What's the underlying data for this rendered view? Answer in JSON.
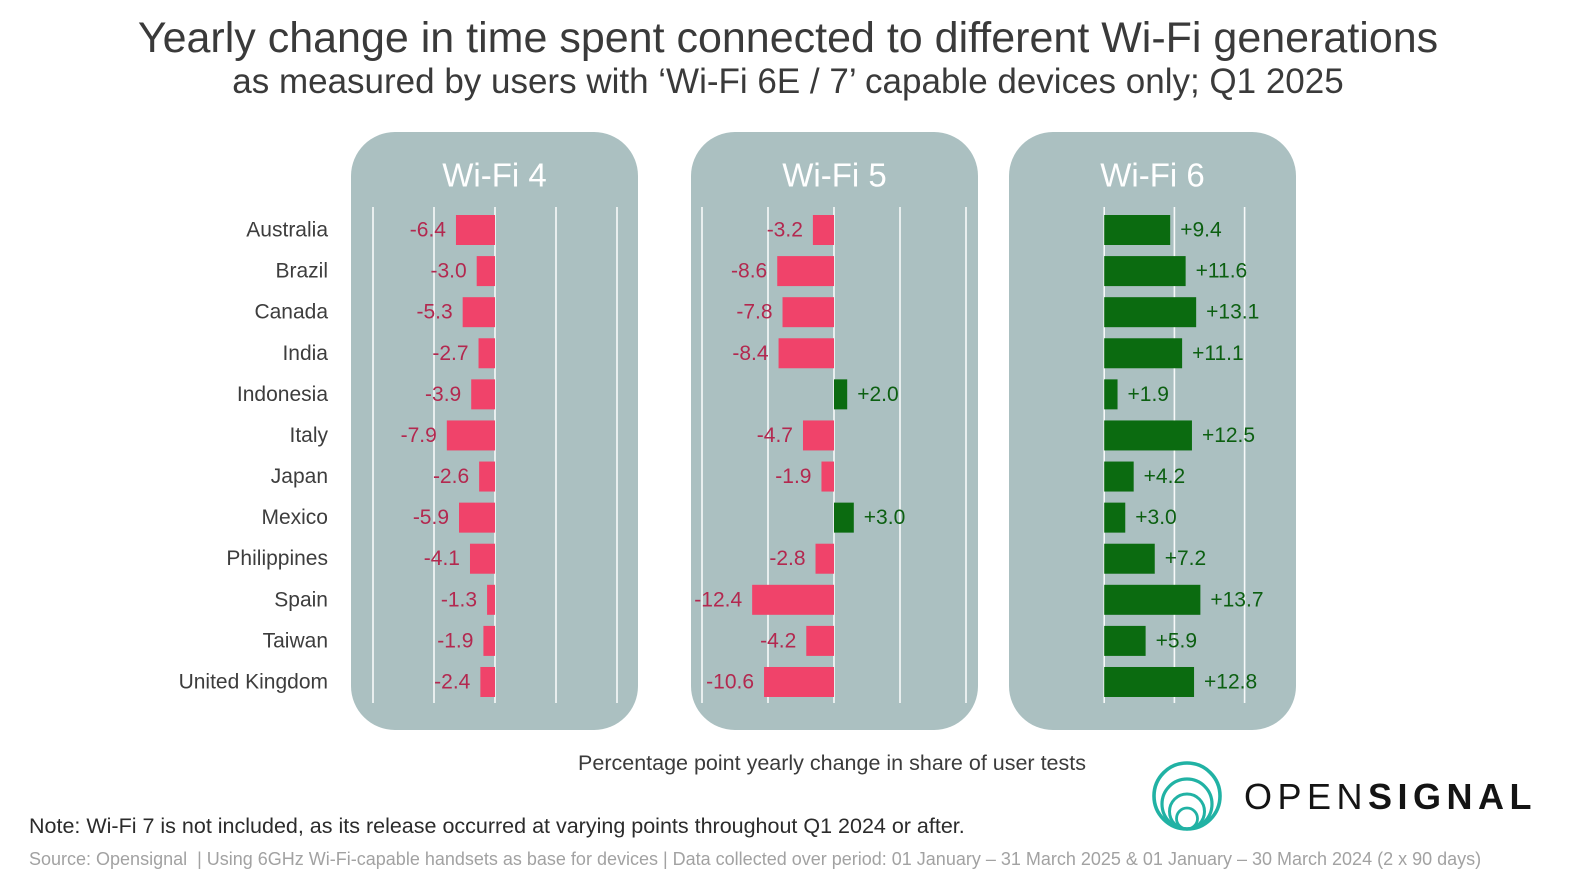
{
  "chart_data": {
    "type": "bar",
    "title": "Yearly change in time spent connected to different Wi-Fi generations",
    "subtitle": "as measured by users with ‘Wi-Fi 6E / 7’ capable devices only; Q1 2025",
    "xlabel": "Percentage point yearly change in share of user tests",
    "categories": [
      "Australia",
      "Brazil",
      "Canada",
      "India",
      "Indonesia",
      "Italy",
      "Japan",
      "Mexico",
      "Philippines",
      "Spain",
      "Taiwan",
      "United Kingdom"
    ],
    "series": [
      {
        "name": "Wi-Fi 4",
        "values": [
          -6.4,
          -3.0,
          -5.3,
          -2.7,
          -3.9,
          -7.9,
          -2.6,
          -5.9,
          -4.1,
          -1.3,
          -1.9,
          -2.4
        ],
        "xlim": [
          -20,
          20
        ],
        "gridlines": [
          -20,
          -10,
          0,
          10,
          20
        ]
      },
      {
        "name": "Wi-Fi 5",
        "values": [
          -3.2,
          -8.6,
          -7.8,
          -8.4,
          2.0,
          -4.7,
          -1.9,
          3.0,
          -2.8,
          -12.4,
          -4.2,
          -10.6
        ],
        "xlim": [
          -20,
          20
        ],
        "gridlines": [
          -20,
          -10,
          0,
          10,
          20
        ]
      },
      {
        "name": "Wi-Fi 6",
        "values": [
          9.4,
          11.6,
          13.1,
          11.1,
          1.9,
          12.5,
          4.2,
          3.0,
          7.2,
          13.7,
          5.9,
          12.8
        ],
        "xlim": [
          -10,
          20
        ],
        "gridlines": [
          0,
          10,
          20
        ]
      }
    ],
    "grid": true,
    "colors": {
      "panel": "#abc0c1",
      "gridline": "#ffffff",
      "negative_bar": "#f0436a",
      "negative_label": "#b3284f",
      "positive_bar": "#0b6b10",
      "positive_label": "#0c5f11"
    }
  },
  "footer": {
    "note": "Note: Wi-Fi 7 is not included, as its release occurred at varying points throughout Q1 2024 or after.",
    "source": "Source: Opensignal  | Using 6GHz Wi-Fi-capable handsets as base for devices | Data collected over period: 01 January – 31 March 2025 & 01 January – 30 March 2024 (2 x 90 days)"
  },
  "logo": {
    "icon": "concentric-circles-icon",
    "color": "#21b2a4",
    "wordmark_light": "OPEN",
    "wordmark_bold": "SIGNAL"
  }
}
